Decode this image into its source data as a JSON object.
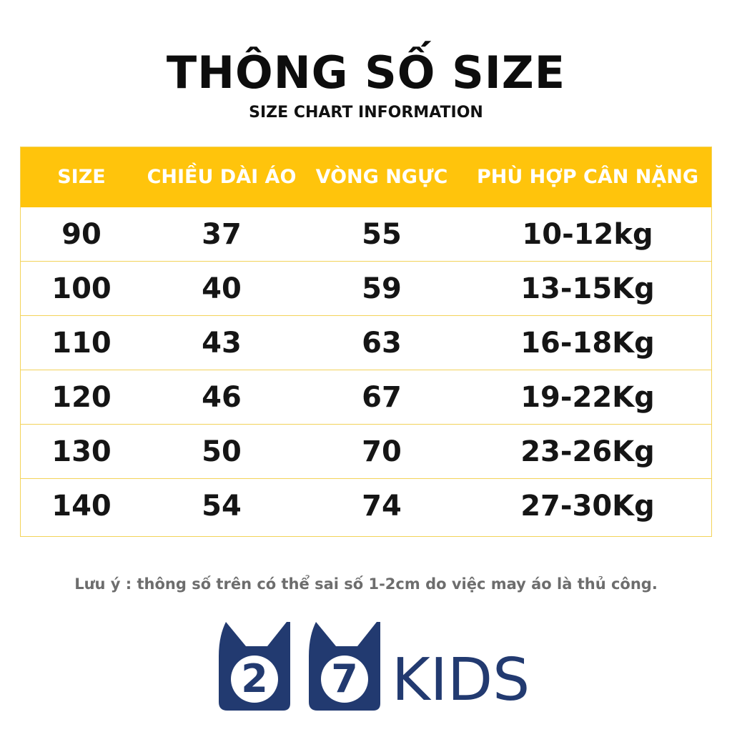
{
  "title": "THÔNG SỐ SIZE",
  "subtitle": "SIZE CHART INFORMATION",
  "table": {
    "headers": [
      "SIZE",
      "CHIỀU DÀI ÁO",
      "VÒNG NGỰC",
      "PHÙ HỢP CÂN NẶNG"
    ],
    "rows": [
      [
        "90",
        "37",
        "55",
        "10-12kg"
      ],
      [
        "100",
        "40",
        "59",
        "13-15Kg"
      ],
      [
        "110",
        "43",
        "63",
        "16-18Kg"
      ],
      [
        "120",
        "46",
        "67",
        "19-22Kg"
      ],
      [
        "130",
        "50",
        "70",
        "23-26Kg"
      ],
      [
        "140",
        "54",
        "74",
        "27-30Kg"
      ]
    ]
  },
  "note": "Lưu ý : thông số trên có thể sai số 1-2cm do việc may áo là thủ công.",
  "logo": {
    "digit1": "2",
    "digit2": "7",
    "word": "KIDS"
  },
  "colors": {
    "header_bg": "#ffc40c",
    "border": "#f3d35a",
    "brand_navy": "#223a70",
    "note_text": "#6d6d6d"
  }
}
